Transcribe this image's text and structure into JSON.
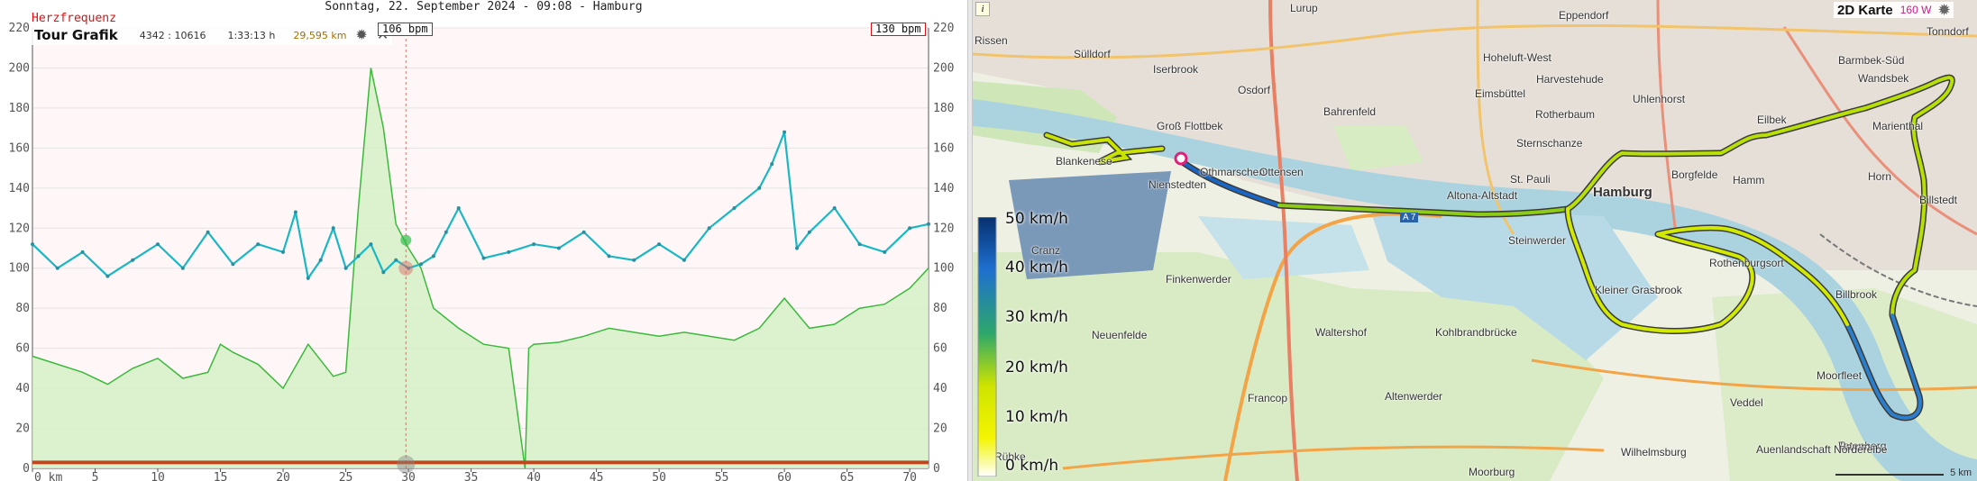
{
  "header": {
    "title": "Sonntag, 22. September 2024 - 09:08 - Hamburg",
    "metric_label": "Herzfrequenz"
  },
  "tour": {
    "title": "Tour Grafik",
    "range": "4342 : 10616",
    "duration": "1:33:13 h",
    "distance": "29,595 km",
    "settings_icon": "gear-icon",
    "close_icon": "close-icon"
  },
  "markers": {
    "left_bpm": "106 bpm",
    "right_bpm": "130 bpm"
  },
  "colors": {
    "heart_rate": "#1ab7c4",
    "elevation_fill": "#d6f0c6",
    "elevation_line": "#3cb93c",
    "route_fast": "#1a66c4",
    "route_slow": "#e4ef00",
    "accent": "#d11111"
  },
  "chart_data": {
    "type": "line",
    "xlabel": "km",
    "x_ticks": [
      "0",
      "5",
      "10",
      "15",
      "20",
      "25",
      "30",
      "35",
      "40",
      "45",
      "50",
      "55",
      "60",
      "65",
      "70"
    ],
    "y_ticks": [
      "0",
      "20",
      "40",
      "60",
      "80",
      "100",
      "120",
      "140",
      "160",
      "180",
      "200",
      "220"
    ],
    "xlim": [
      0,
      71.5
    ],
    "ylim": [
      0,
      220
    ],
    "series": [
      {
        "kind": "heart_rate",
        "x": [
          0,
          2,
          4,
          6,
          8,
          10,
          12,
          14,
          16,
          18,
          20,
          21,
          22,
          23,
          24,
          25,
          26,
          27,
          28,
          29,
          30,
          31,
          32,
          33,
          34,
          36,
          38,
          40,
          42,
          44,
          46,
          48,
          50,
          52,
          54,
          56,
          58,
          59,
          60,
          61,
          62,
          64,
          66,
          68,
          70,
          71.5
        ],
        "values": [
          112,
          100,
          108,
          96,
          104,
          112,
          100,
          118,
          102,
          112,
          108,
          128,
          95,
          104,
          120,
          100,
          106,
          112,
          98,
          104,
          100,
          102,
          106,
          118,
          130,
          105,
          108,
          112,
          110,
          118,
          106,
          104,
          112,
          104,
          120,
          130,
          140,
          152,
          168,
          110,
          118,
          130,
          112,
          108,
          120,
          122
        ]
      },
      {
        "kind": "elevation",
        "x": [
          0,
          2,
          4,
          6,
          8,
          10,
          12,
          14,
          15,
          16,
          18,
          20,
          22,
          24,
          25,
          26,
          27,
          28,
          29,
          30,
          31,
          32,
          34,
          36,
          38,
          39.3,
          39.6,
          40,
          42,
          44,
          46,
          48,
          50,
          52,
          54,
          56,
          58,
          60,
          62,
          64,
          66,
          68,
          70,
          71.5
        ],
        "values": [
          56,
          52,
          48,
          42,
          50,
          55,
          45,
          48,
          62,
          58,
          52,
          40,
          62,
          46,
          48,
          130,
          200,
          170,
          122,
          110,
          100,
          80,
          70,
          62,
          60,
          0,
          60,
          62,
          63,
          66,
          70,
          68,
          66,
          68,
          66,
          64,
          70,
          85,
          70,
          72,
          80,
          82,
          90,
          100
        ]
      }
    ]
  },
  "map": {
    "title": "2D Karte",
    "power": "160 W",
    "info": "i",
    "scale": "5 km",
    "motorway": "A 7",
    "legend": [
      "50 km/h",
      "40 km/h",
      "30 km/h",
      "20 km/h",
      "10 km/h",
      "0 km/h"
    ],
    "labels": [
      "Lurup",
      "Eppendorf",
      "Barmbek-Süd",
      "Tonndorf",
      "Rissen",
      "Sülldorf",
      "Iserbrook",
      "Osdorf",
      "Hoheluft-West",
      "Harvestehude",
      "Uhlenhorst",
      "Wandsbek",
      "Eimsbüttel",
      "Bahrenfeld",
      "Groß Flottbek",
      "Rotherbaum",
      "Eilbek",
      "Marienthal",
      "Sternschanze",
      "Othmarschen",
      "Ottensen",
      "Blankenese",
      "Nienstedten",
      "St. Pauli",
      "Hamburg",
      "Borgfelde",
      "Hamm",
      "Horn",
      "Billstedt",
      "Altona-Altstadt",
      "Steinwerder",
      "Cranz",
      "Finkenwerder",
      "Kleiner Grasbrook",
      "Rothenburgsort",
      "Billbrook",
      "Neuenfelde",
      "Waltershof",
      "Kohlbrandbrücke",
      "Francop",
      "Altenwerder",
      "Veddel",
      "Moorfleet",
      "Rübke",
      "Wilhelmsburg",
      "Moorburg",
      "Tatenberg",
      "Hamm",
      "Auenlandschaft Norderelbe"
    ]
  }
}
